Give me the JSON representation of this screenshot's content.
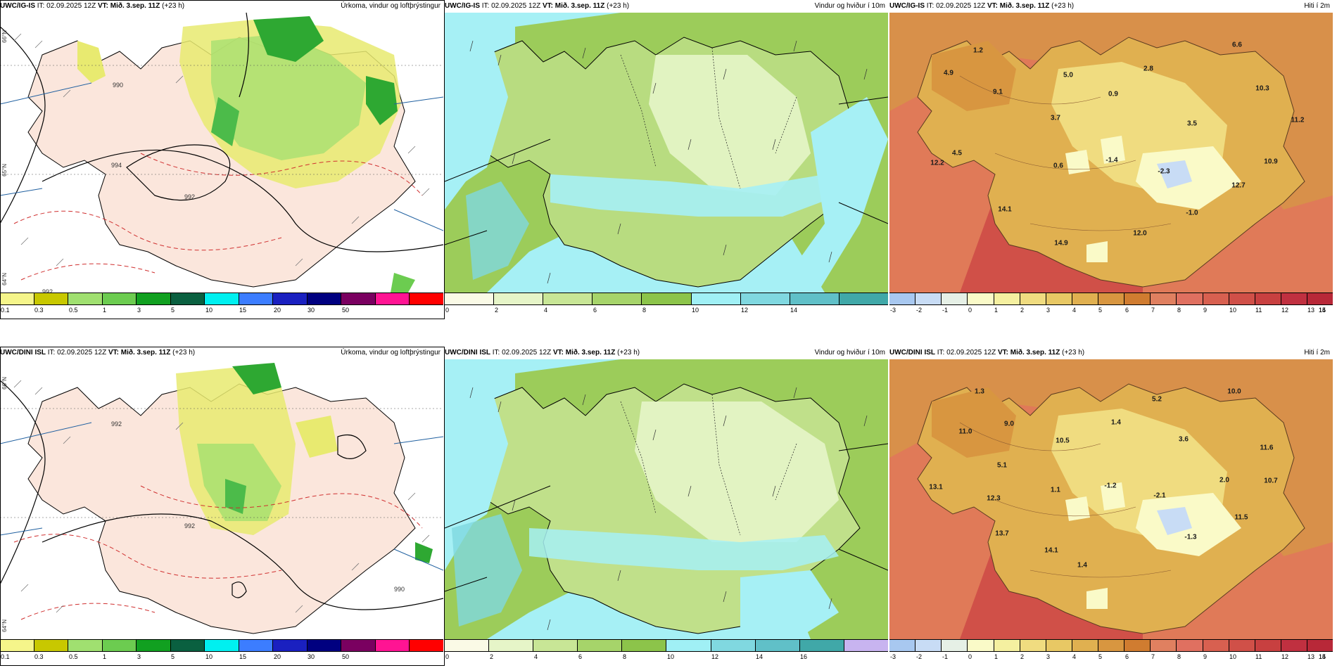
{
  "rows": [
    {
      "model": "UWC/IG-IS",
      "it_label": "IT:",
      "it_value": "02.09.2025 12Z",
      "vt_label": "VT:",
      "vt_value": "Mið. 3.sep. 11Z",
      "lead": "(+23 h)"
    },
    {
      "model": "UWC/DINI ISL",
      "it_label": "IT:",
      "it_value": "02.09.2025 12Z",
      "vt_label": "VT:",
      "vt_value": "Mið. 3.sep. 11Z",
      "lead": "(+23 h)"
    }
  ],
  "panel_titles": {
    "precip": "Úrkoma, vindur og loftþrýstingur",
    "wind": "Vindur og hviður í 10m",
    "temp": "Hiti í 2m"
  },
  "colorbars": {
    "precip": {
      "colors": [
        "#f5f58a",
        "#c8c800",
        "#a0e070",
        "#6ccc50",
        "#11a020",
        "#0a6040",
        "#00f0f0",
        "#3c7dff",
        "#1a20c0",
        "#000080",
        "#7a0060",
        "#ff1493",
        "#ff0000"
      ],
      "ticks": [
        "0.1",
        "0.3",
        "0.5",
        "1",
        "3",
        "5",
        "10",
        "15",
        "20",
        "30",
        "50"
      ]
    },
    "wind_top": {
      "colors": [
        "#fafae6",
        "#e6f5c8",
        "#c8e696",
        "#a6d46a",
        "#8cc44a",
        "#a0f0f5",
        "#80d8e0",
        "#60c0c8",
        "#40a8a8"
      ],
      "ticks": [
        "0",
        "2",
        "4",
        "6",
        "8",
        "10",
        "12",
        "14"
      ]
    },
    "wind_bottom": {
      "colors": [
        "#fafae6",
        "#e6f5c8",
        "#c8e696",
        "#a6d46a",
        "#8cc44a",
        "#a0f0f5",
        "#80d8e0",
        "#60c0c8",
        "#40a8a8",
        "#c8b4f0"
      ],
      "ticks": [
        "0",
        "2",
        "4",
        "6",
        "8",
        "10",
        "12",
        "14",
        "16"
      ]
    },
    "temp": {
      "colors": [
        "#a8c8f0",
        "#c8dcf5",
        "#e6f0e6",
        "#fafac8",
        "#f5f0a0",
        "#f0dc80",
        "#e8c864",
        "#e0b050",
        "#d89640",
        "#d07c30",
        "#e08060",
        "#e07060",
        "#d86050",
        "#d05048",
        "#c84040",
        "#c03040",
        "#b82838"
      ],
      "ticks": [
        "-3",
        "-2",
        "-1",
        "0",
        "1",
        "2",
        "3",
        "4",
        "5",
        "6",
        "7",
        "8",
        "9",
        "10",
        "11",
        "12",
        "13",
        "14",
        "15"
      ]
    }
  },
  "lat_labels": {
    "a": "66°N",
    "b": "65°N",
    "c": "64°N"
  },
  "isobar_labels": {
    "top": [
      "990",
      "994",
      "992",
      "992"
    ],
    "bottom": [
      "992",
      "992",
      "990"
    ]
  },
  "temp_values_top": [
    "1.2",
    "6.6",
    "4.9",
    "5.0",
    "2.8",
    "9.1",
    "0.9",
    "10.3",
    "3.7",
    "3.5",
    "11.2",
    "4.5",
    "12.2",
    "0.6",
    "-1.4",
    "-2.3",
    "10.9",
    "12.7",
    "14.1",
    "-1.0",
    "12.0",
    "14.9"
  ],
  "temp_values_bottom": [
    "1.3",
    "10.0",
    "5.2",
    "11.0",
    "9.0",
    "1.4",
    "10.5",
    "3.6",
    "11.6",
    "5.1",
    "13.1",
    "1.1",
    "-1.2",
    "-2.1",
    "2.0",
    "10.7",
    "12.3",
    "11.5",
    "13.7",
    "-1.3",
    "14.1",
    "1.4"
  ]
}
